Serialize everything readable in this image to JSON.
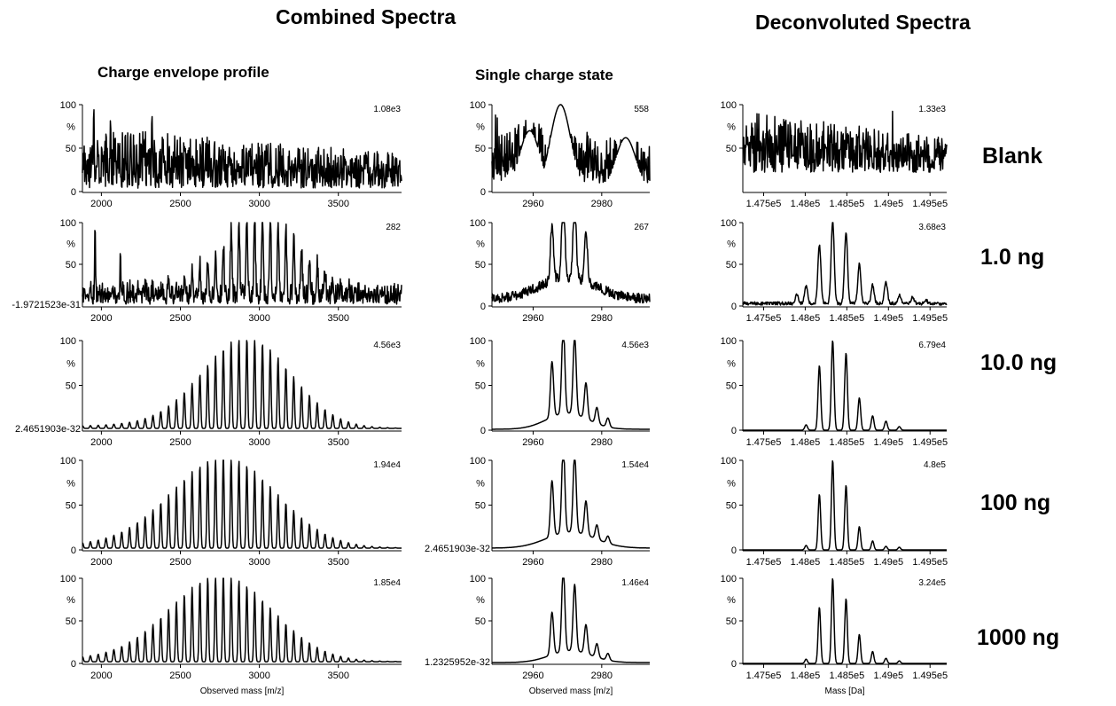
{
  "headings": {
    "combined": "Combined Spectra",
    "deconvoluted": "Deconvoluted Spectra",
    "charge_envelope": "Charge envelope profile",
    "single_charge": "Single charge state"
  },
  "row_labels": [
    "Blank",
    "1.0 ng",
    "10.0 ng",
    "100 ng",
    "1000 ng"
  ],
  "colors": {
    "trace": "#000000",
    "axis": "#000000",
    "background": "#ffffff"
  },
  "chart_data": [
    {
      "type": "line",
      "panel": "charge-envelope",
      "row": "Blank",
      "xlim": [
        1880,
        3900
      ],
      "xticks": [
        2000,
        2500,
        3000,
        3500
      ],
      "xtick_labels": [
        "2000",
        "2500",
        "3000",
        "3500"
      ],
      "ylim": [
        0,
        100
      ],
      "yticks": [
        0,
        50,
        100
      ],
      "ytick_labels": [
        "0",
        "50",
        "100"
      ],
      "ylabel": "%",
      "max_intensity": "1.08e3",
      "xlabel": "",
      "profile": "noise",
      "baseline": 4,
      "noise_amp": 36,
      "peaks": [
        {
          "x": 1952,
          "y": 100
        },
        {
          "x": 2058,
          "y": 86
        },
        {
          "x": 2185,
          "y": 72
        },
        {
          "x": 2320,
          "y": 92
        },
        {
          "x": 3290,
          "y": 45
        }
      ]
    },
    {
      "type": "line",
      "panel": "single-charge",
      "row": "Blank",
      "xlim": [
        2948,
        2994
      ],
      "xticks": [
        2960,
        2980
      ],
      "xtick_labels": [
        "2960",
        "2980"
      ],
      "ylim": [
        0,
        100
      ],
      "yticks": [
        0,
        50,
        100
      ],
      "ytick_labels": [
        "0",
        "50",
        "100"
      ],
      "ylabel": "%",
      "max_intensity": "558",
      "xlabel": "",
      "profile": "noise",
      "baseline": 10,
      "noise_amp": 40,
      "peaks": [
        {
          "x": 2968,
          "y": 100
        },
        {
          "x": 2959,
          "y": 70
        },
        {
          "x": 2987,
          "y": 62
        }
      ]
    },
    {
      "type": "line",
      "panel": "deconvoluted",
      "row": "Blank",
      "xlim": [
        147250,
        149700
      ],
      "xticks": [
        147500,
        148000,
        148500,
        149000,
        149500
      ],
      "xtick_labels": [
        "1.475e5",
        "1.48e5",
        "1.485e5",
        "1.49e5",
        "1.495e5"
      ],
      "ylim": [
        0,
        100
      ],
      "yticks": [
        50,
        100
      ],
      "ytick_labels": [
        "50",
        "100"
      ],
      "ylabel": "%",
      "max_intensity": "1.33e3",
      "xlabel": "",
      "profile": "noise",
      "baseline": 22,
      "noise_amp": 36,
      "peaks": [
        {
          "x": 147750,
          "y": 78
        },
        {
          "x": 148320,
          "y": 98
        },
        {
          "x": 148560,
          "y": 82
        },
        {
          "x": 149050,
          "y": 100
        },
        {
          "x": 149240,
          "y": 70
        }
      ]
    },
    {
      "type": "line",
      "panel": "charge-envelope",
      "row": "1.0 ng",
      "xlim": [
        1880,
        3900
      ],
      "xticks": [
        2000,
        2500,
        3000,
        3500
      ],
      "xtick_labels": [
        "2000",
        "2500",
        "3000",
        "3500"
      ],
      "ylim": [
        0,
        100
      ],
      "yticks": [
        50,
        100
      ],
      "ytick_labels": [
        "50",
        "100"
      ],
      "ylabel": "%",
      "max_intensity": "282",
      "xlabel": "",
      "ymin_label": "-1.9721523e-31",
      "profile": "envelope",
      "center": 3010,
      "sigma": 250,
      "spacing": 49.5,
      "baseline": 2,
      "noise_amp": 26,
      "peak_width": 5,
      "peaks": [
        {
          "x": 1960,
          "y": 100
        },
        {
          "x": 2120,
          "y": 68
        }
      ]
    },
    {
      "type": "line",
      "panel": "single-charge",
      "row": "1.0 ng",
      "xlim": [
        2948,
        2994
      ],
      "xticks": [
        2960,
        2980
      ],
      "xtick_labels": [
        "2960",
        "2980"
      ],
      "ylim": [
        0,
        100
      ],
      "yticks": [
        0,
        50,
        100
      ],
      "ytick_labels": [
        "0",
        "50",
        "100"
      ],
      "ylabel": "%",
      "max_intensity": "267",
      "xlabel": "",
      "profile": "cluster",
      "baseline": 6,
      "noise_amp": 12,
      "hump_center": 2970,
      "hump_sigma": 8,
      "hump_height": 26,
      "peaks": [
        {
          "x": 2965.5,
          "y": 66
        },
        {
          "x": 2968.8,
          "y": 100
        },
        {
          "x": 2972.1,
          "y": 98
        },
        {
          "x": 2975.4,
          "y": 60
        }
      ]
    },
    {
      "type": "line",
      "panel": "deconvoluted",
      "row": "1.0 ng",
      "xlim": [
        147250,
        149700
      ],
      "xticks": [
        147500,
        148000,
        148500,
        149000,
        149500
      ],
      "xtick_labels": [
        "1.475e5",
        "1.48e5",
        "1.485e5",
        "1.49e5",
        "1.495e5"
      ],
      "ylim": [
        0,
        100
      ],
      "yticks": [
        0,
        50,
        100
      ],
      "ytick_labels": [
        "0",
        "50",
        "100"
      ],
      "ylabel": "%",
      "max_intensity": "3.68e3",
      "xlabel": "",
      "profile": "peaks",
      "baseline": 1,
      "noise_amp": 4,
      "peak_width": 18,
      "peaks": [
        {
          "x": 147900,
          "y": 12
        },
        {
          "x": 148010,
          "y": 20
        },
        {
          "x": 148170,
          "y": 70
        },
        {
          "x": 148330,
          "y": 100
        },
        {
          "x": 148490,
          "y": 86
        },
        {
          "x": 148650,
          "y": 48
        },
        {
          "x": 148810,
          "y": 22
        },
        {
          "x": 148970,
          "y": 26
        },
        {
          "x": 149130,
          "y": 10
        },
        {
          "x": 149290,
          "y": 8
        },
        {
          "x": 149450,
          "y": 4
        }
      ]
    },
    {
      "type": "line",
      "panel": "charge-envelope",
      "row": "10.0 ng",
      "xlim": [
        1880,
        3900
      ],
      "xticks": [
        2000,
        2500,
        3000,
        3500
      ],
      "xtick_labels": [
        "2000",
        "2500",
        "3000",
        "3500"
      ],
      "ylim": [
        0,
        100
      ],
      "yticks": [
        50,
        100
      ],
      "ytick_labels": [
        "50",
        "100"
      ],
      "ylabel": "%",
      "max_intensity": "4.56e3",
      "xlabel": "",
      "ymin_label": "2.4651903e-32",
      "profile": "envelope",
      "center": 2920,
      "sigma": 280,
      "spacing": 49.5,
      "baseline": 2,
      "noise_amp": 0,
      "peak_width": 5,
      "peaks": []
    },
    {
      "type": "line",
      "panel": "single-charge",
      "row": "10.0 ng",
      "xlim": [
        2948,
        2994
      ],
      "xticks": [
        2960,
        2980
      ],
      "xtick_labels": [
        "2960",
        "2980"
      ],
      "ylim": [
        0,
        100
      ],
      "yticks": [
        0,
        50,
        100
      ],
      "ytick_labels": [
        "0",
        "50",
        "100"
      ],
      "ylabel": "%",
      "max_intensity": "4.56e3",
      "xlabel": "",
      "profile": "cluster",
      "baseline": 1,
      "noise_amp": 0,
      "hump_center": 2970,
      "hump_sigma": 6,
      "hump_height": 18,
      "peaks": [
        {
          "x": 2965.5,
          "y": 62
        },
        {
          "x": 2968.8,
          "y": 100
        },
        {
          "x": 2972.1,
          "y": 88
        },
        {
          "x": 2975.4,
          "y": 40
        },
        {
          "x": 2978.6,
          "y": 18
        },
        {
          "x": 2981.8,
          "y": 10
        }
      ]
    },
    {
      "type": "line",
      "panel": "deconvoluted",
      "row": "10.0 ng",
      "xlim": [
        147250,
        149700
      ],
      "xticks": [
        147500,
        148000,
        148500,
        149000,
        149500
      ],
      "xtick_labels": [
        "1.475e5",
        "1.48e5",
        "1.485e5",
        "1.49e5",
        "1.495e5"
      ],
      "ylim": [
        0,
        100
      ],
      "yticks": [
        0,
        50,
        100
      ],
      "ytick_labels": [
        "0",
        "50",
        "100"
      ],
      "ylabel": "%",
      "max_intensity": "6.79e4",
      "xlabel": "",
      "profile": "peaks",
      "baseline": 0,
      "noise_amp": 0,
      "peak_width": 16,
      "peaks": [
        {
          "x": 148010,
          "y": 6
        },
        {
          "x": 148170,
          "y": 72
        },
        {
          "x": 148330,
          "y": 100
        },
        {
          "x": 148490,
          "y": 86
        },
        {
          "x": 148650,
          "y": 36
        },
        {
          "x": 148810,
          "y": 16
        },
        {
          "x": 148970,
          "y": 10
        },
        {
          "x": 149130,
          "y": 4
        }
      ]
    },
    {
      "type": "line",
      "panel": "charge-envelope",
      "row": "100 ng",
      "xlim": [
        1880,
        3900
      ],
      "xticks": [
        2000,
        2500,
        3000,
        3500
      ],
      "xtick_labels": [
        "2000",
        "2500",
        "3000",
        "3500"
      ],
      "ylim": [
        0,
        100
      ],
      "yticks": [
        0,
        50,
        100
      ],
      "ytick_labels": [
        "0",
        "50",
        "100"
      ],
      "ylabel": "%",
      "max_intensity": "1.94e4",
      "xlabel": "",
      "profile": "envelope",
      "center": 2780,
      "sigma": 330,
      "spacing": 49.5,
      "baseline": 2,
      "noise_amp": 0,
      "peak_width": 5,
      "peaks": []
    },
    {
      "type": "line",
      "panel": "single-charge",
      "row": "100 ng",
      "xlim": [
        2948,
        2994
      ],
      "xticks": [
        2960,
        2980
      ],
      "xtick_labels": [
        "2960",
        "2980"
      ],
      "ylim": [
        0,
        100
      ],
      "yticks": [
        50,
        100
      ],
      "ytick_labels": [
        "50",
        "100"
      ],
      "ylabel": "%",
      "max_intensity": "1.54e4",
      "xlabel": "",
      "ymin_label": "2.4651903e-32",
      "profile": "cluster",
      "baseline": 2,
      "noise_amp": 0,
      "hump_center": 2971,
      "hump_sigma": 7,
      "hump_height": 18,
      "peaks": [
        {
          "x": 2965.5,
          "y": 62
        },
        {
          "x": 2968.8,
          "y": 100
        },
        {
          "x": 2972.1,
          "y": 88
        },
        {
          "x": 2975.4,
          "y": 38
        },
        {
          "x": 2978.6,
          "y": 16
        },
        {
          "x": 2981.8,
          "y": 8
        }
      ]
    },
    {
      "type": "line",
      "panel": "deconvoluted",
      "row": "100 ng",
      "xlim": [
        147250,
        149700
      ],
      "xticks": [
        147500,
        148000,
        148500,
        149000,
        149500
      ],
      "xtick_labels": [
        "1.475e5",
        "1.48e5",
        "1.485e5",
        "1.49e5",
        "1.495e5"
      ],
      "ylim": [
        0,
        100
      ],
      "yticks": [
        0,
        50,
        100
      ],
      "ytick_labels": [
        "0",
        "50",
        "100"
      ],
      "ylabel": "%",
      "max_intensity": "4.8e5",
      "xlabel": "",
      "profile": "peaks",
      "baseline": 0,
      "noise_amp": 0,
      "peak_width": 15,
      "peaks": [
        {
          "x": 148010,
          "y": 5
        },
        {
          "x": 148170,
          "y": 62
        },
        {
          "x": 148330,
          "y": 100
        },
        {
          "x": 148490,
          "y": 72
        },
        {
          "x": 148650,
          "y": 26
        },
        {
          "x": 148810,
          "y": 10
        },
        {
          "x": 148970,
          "y": 4
        },
        {
          "x": 149130,
          "y": 3
        }
      ]
    },
    {
      "type": "line",
      "panel": "charge-envelope",
      "row": "1000 ng",
      "xlim": [
        1880,
        3900
      ],
      "xticks": [
        2000,
        2500,
        3000,
        3500
      ],
      "xtick_labels": [
        "2000",
        "2500",
        "3000",
        "3500"
      ],
      "ylim": [
        0,
        100
      ],
      "yticks": [
        0,
        50,
        100
      ],
      "ytick_labels": [
        "0",
        "50",
        "100"
      ],
      "ylabel": "%",
      "max_intensity": "1.85e4",
      "xlabel": "Observed mass [m/z]",
      "profile": "envelope",
      "center": 2760,
      "sigma": 320,
      "spacing": 49.5,
      "baseline": 2,
      "noise_amp": 0,
      "peak_width": 5,
      "peaks": []
    },
    {
      "type": "line",
      "panel": "single-charge",
      "row": "1000 ng",
      "xlim": [
        2948,
        2994
      ],
      "xticks": [
        2960,
        2980
      ],
      "xtick_labels": [
        "2960",
        "2980"
      ],
      "ylim": [
        0,
        100
      ],
      "yticks": [
        50,
        100
      ],
      "ytick_labels": [
        "50",
        "100"
      ],
      "ylabel": "%",
      "max_intensity": "1.46e4",
      "xlabel": "Observed mass [m/z]",
      "ymin_label": "1.2325952e-32",
      "profile": "cluster",
      "baseline": 1,
      "noise_amp": 0,
      "hump_center": 2971,
      "hump_sigma": 6,
      "hump_height": 14,
      "peaks": [
        {
          "x": 2965.5,
          "y": 50
        },
        {
          "x": 2968.8,
          "y": 100
        },
        {
          "x": 2972.1,
          "y": 78
        },
        {
          "x": 2975.4,
          "y": 34
        },
        {
          "x": 2978.6,
          "y": 16
        },
        {
          "x": 2981.8,
          "y": 8
        }
      ]
    },
    {
      "type": "line",
      "panel": "deconvoluted",
      "row": "1000 ng",
      "xlim": [
        147250,
        149700
      ],
      "xticks": [
        147500,
        148000,
        148500,
        149000,
        149500
      ],
      "xtick_labels": [
        "1.475e5",
        "1.48e5",
        "1.485e5",
        "1.49e5",
        "1.495e5"
      ],
      "ylim": [
        0,
        100
      ],
      "yticks": [
        0,
        50,
        100
      ],
      "ytick_labels": [
        "0",
        "50",
        "100"
      ],
      "ylabel": "%",
      "max_intensity": "3.24e5",
      "xlabel": "Mass [Da]",
      "profile": "peaks",
      "baseline": 0,
      "noise_amp": 0,
      "peak_width": 15,
      "peaks": [
        {
          "x": 148010,
          "y": 5
        },
        {
          "x": 148170,
          "y": 66
        },
        {
          "x": 148330,
          "y": 100
        },
        {
          "x": 148490,
          "y": 76
        },
        {
          "x": 148650,
          "y": 34
        },
        {
          "x": 148810,
          "y": 14
        },
        {
          "x": 148970,
          "y": 6
        },
        {
          "x": 149130,
          "y": 3
        }
      ]
    }
  ]
}
